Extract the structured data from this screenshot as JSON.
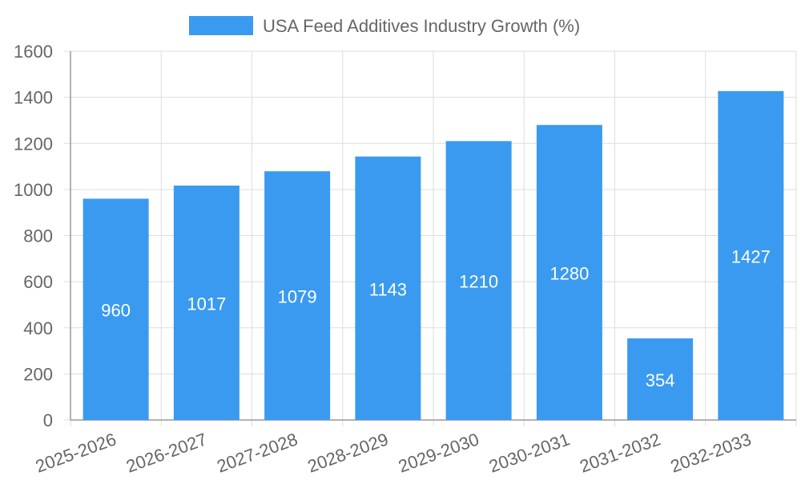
{
  "chart_data": {
    "type": "bar",
    "categories": [
      "2025-2026",
      "2026-2027",
      "2027-2028",
      "2028-2029",
      "2029-2030",
      "2030-2031",
      "2031-2032",
      "2032-2033"
    ],
    "series": [
      {
        "name": "USA Feed Additives Industry Growth (%)",
        "values": [
          960,
          1017,
          1079,
          1143,
          1210,
          1280,
          354,
          1427
        ],
        "color": "#3a9af0"
      }
    ],
    "data_labels": [
      "960",
      "1017",
      "1079",
      "1143",
      "1210",
      "1280",
      "354",
      "1427"
    ],
    "yticks": [
      "0",
      "200",
      "400",
      "600",
      "800",
      "1000",
      "1200",
      "1400",
      "1600"
    ],
    "ylim": [
      0,
      1600
    ],
    "title": "",
    "xlabel": "",
    "ylabel": "",
    "grid": true,
    "legend_position": "top-center",
    "colors": {
      "bar": "#3a9af0",
      "grid": "#dddddd",
      "axis": "#999999",
      "tick_text": "#666666",
      "data_label": "#ffffff"
    }
  }
}
